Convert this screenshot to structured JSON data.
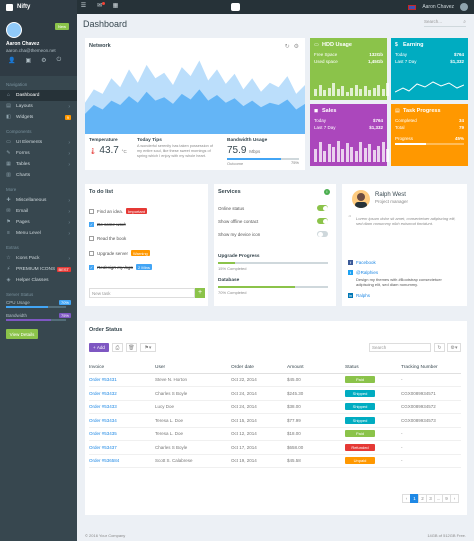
{
  "brand": {
    "name": "Nifty"
  },
  "topbar": {
    "user_name": "Aaron Chavez"
  },
  "sidebar": {
    "profile": {
      "name": "Aaron Chavez",
      "email": "aaron.cha@themeon.net",
      "badge": "New"
    },
    "sections": [
      {
        "title": "Navigation",
        "items": [
          {
            "label": "Dashboard",
            "icon": "home-icon",
            "active": true
          },
          {
            "label": "Layouts",
            "icon": "layout-icon",
            "arrow": true
          },
          {
            "label": "Widgets",
            "icon": "widget-icon",
            "badge": "9",
            "badge_color": "#ff9800"
          }
        ]
      },
      {
        "title": "Components",
        "items": [
          {
            "label": "UI Elements",
            "icon": "briefcase-icon",
            "arrow": true
          },
          {
            "label": "Forms",
            "icon": "edit-icon",
            "arrow": true
          },
          {
            "label": "Tables",
            "icon": "table-icon",
            "arrow": true
          },
          {
            "label": "Charts",
            "icon": "chart-icon"
          }
        ]
      },
      {
        "title": "More",
        "items": [
          {
            "label": "Miscellaneous",
            "icon": "plus-icon",
            "arrow": true
          },
          {
            "label": "Email",
            "icon": "envelope-icon",
            "arrow": true
          },
          {
            "label": "Pages",
            "icon": "flag-icon",
            "arrow": true
          },
          {
            "label": "Menu Level",
            "icon": "menu-icon",
            "arrow": true
          }
        ]
      },
      {
        "title": "Extras",
        "items": [
          {
            "label": "Icons Pack",
            "icon": "star-icon",
            "arrow": true
          },
          {
            "label": "PREMIUM ICONS",
            "icon": "lightning-icon",
            "badge": "BEST",
            "badge_color": "#e53935"
          },
          {
            "label": "Helper Classes",
            "icon": "helper-icon"
          }
        ]
      }
    ],
    "server_status": {
      "title": "Server Status",
      "cpu": {
        "label": "CPU Usage",
        "pct": "70%",
        "value": 70,
        "color": "#42a5f5"
      },
      "bandwidth": {
        "label": "Bandwidth",
        "pct": "75%",
        "value": 75,
        "color": "#7e57c2"
      },
      "button": "View Details"
    }
  },
  "page": {
    "title": "Dashboard",
    "search_placeholder": "Search..."
  },
  "network": {
    "title": "Network",
    "temperature": {
      "label": "Temperature",
      "value": "43.7",
      "unit": "°C"
    },
    "tips": {
      "label": "Today Tips",
      "text": "A wonderful serenity has taken possession of my entire soul, like these sweet mornings of spring which I enjoy with my whole heart."
    },
    "bandwidth": {
      "label": "Bandwidth Usage",
      "value": "75.9",
      "unit": "Mbps",
      "sub": "Outcome",
      "pct": "75%",
      "progress": 75
    },
    "chart_data": {
      "type": "area",
      "series": [
        {
          "values": [
            28,
            40,
            36,
            50,
            42,
            58,
            46,
            62,
            50,
            55,
            44,
            60,
            52,
            66,
            48,
            58,
            45,
            54,
            40,
            50,
            38,
            46,
            42,
            52,
            36,
            44
          ]
        },
        {
          "values": [
            18,
            26,
            22,
            30,
            26,
            34,
            28,
            38,
            30,
            33,
            27,
            36,
            31,
            40,
            30,
            35,
            28,
            32,
            25,
            30,
            24,
            28,
            26,
            31,
            22,
            27
          ]
        }
      ]
    }
  },
  "tiles": {
    "hdd": {
      "title": "HDD Usage",
      "icon": "hdd-icon",
      "color": "#8bc34a",
      "rows": [
        {
          "k": "Free Space",
          "v": "132Gb"
        },
        {
          "k": "Used space",
          "v": "1,45Gb"
        }
      ],
      "bars": [
        0.5,
        0.8,
        0.4,
        0.6,
        0.9,
        0.5,
        0.7,
        0.3,
        0.6,
        0.8,
        0.5,
        0.7,
        0.4,
        0.6,
        0.8,
        0.5,
        0.9,
        0.6,
        0.4,
        0.7
      ]
    },
    "earning": {
      "title": "Earning",
      "icon": "dollar-icon",
      "color": "#00acc1",
      "rows": [
        {
          "k": "Today",
          "v": "$764"
        },
        {
          "k": "Last 7 Day",
          "v": "$1,332"
        }
      ]
    },
    "sales": {
      "title": "Sales",
      "icon": "bag-icon",
      "color": "#ab47bc",
      "rows": [
        {
          "k": "Today",
          "v": "$764"
        },
        {
          "k": "Last 7 Day",
          "v": "$1,332"
        }
      ],
      "bars": [
        0.6,
        0.9,
        0.5,
        0.8,
        0.7,
        0.95,
        0.6,
        0.85,
        0.7,
        0.5,
        0.9,
        0.65,
        0.8,
        0.55,
        0.75,
        0.9,
        0.6,
        0.8,
        0.7,
        0.85
      ]
    },
    "task": {
      "title": "Task Progress",
      "icon": "doc-icon",
      "color": "#ff9800",
      "rows": [
        {
          "k": "Completed",
          "v": "34"
        },
        {
          "k": "Total",
          "v": "79"
        }
      ],
      "progress_label": "Progress",
      "progress_pct": "45%",
      "progress": 45
    }
  },
  "todo": {
    "title": "To do list",
    "items": [
      {
        "text": "Find an idea.",
        "checked": false,
        "badge": "Important",
        "badge_color": "#e53935"
      },
      {
        "text": "Do some work",
        "checked": true
      },
      {
        "text": "Read the book",
        "checked": false
      },
      {
        "text": "Upgrade server",
        "checked": false,
        "badge": "Warning",
        "badge_color": "#ff9800"
      },
      {
        "text": "Redesign my logo",
        "checked": true,
        "badge": "2 Mins",
        "badge_color": "#42a5f5"
      }
    ],
    "input_placeholder": "New task",
    "add_label": "+"
  },
  "services": {
    "title": "Services",
    "info": "i",
    "toggles": [
      {
        "label": "Online status",
        "on": true
      },
      {
        "label": "Show offline contact",
        "on": true
      },
      {
        "label": "Show my device icon",
        "on": false
      }
    ],
    "upgrade": {
      "label": "Upgrade Progress",
      "sub": "15% Completed",
      "value": 15,
      "color": "#8bc34a"
    },
    "database": {
      "label": "Database",
      "sub": "70% Completed",
      "value": 70,
      "color": "#8bc34a"
    }
  },
  "profile_card": {
    "name": "Ralph West",
    "role": "Project manager",
    "quote": "Lorem ipsum dolor sit amet, consectetuer adipiscing elit, sed diam nonummy nibh euismod tincidunt.",
    "facebook": "Facebook",
    "twitter": "@Ralphies",
    "twitter_text": "Design my themes with #Bootstrap consectetuer adipiscing elit, sed diam nonummy.",
    "twitter_count": "Ralphs"
  },
  "orders": {
    "title": "Order Status",
    "add_label": "Add",
    "search_placeholder": "Search",
    "columns": [
      "Invoice",
      "User",
      "Order date",
      "Amount",
      "Status",
      "Tracking Number"
    ],
    "rows": [
      {
        "invoice": "Order #53431",
        "user": "Steve N. Horton",
        "date": "Oct 22, 2014",
        "amount": "$45.00",
        "status": "Paid",
        "status_color": "#8bc34a",
        "tracking": "-"
      },
      {
        "invoice": "Order #53432",
        "user": "Charles S Boyle",
        "date": "Oct 24, 2014",
        "amount": "$245.30",
        "status": "Shipped",
        "status_color": "#00acc1",
        "tracking": "CGX0089934571"
      },
      {
        "invoice": "Order #53433",
        "user": "Lucy Doe",
        "date": "Oct 24, 2014",
        "amount": "$38.00",
        "status": "Shipped",
        "status_color": "#00acc1",
        "tracking": "CGX0089934572"
      },
      {
        "invoice": "Order #53434",
        "user": "Teresa L. Doe",
        "date": "Oct 15, 2014",
        "amount": "$77.99",
        "status": "Shipped",
        "status_color": "#00acc1",
        "tracking": "CGX0089934573"
      },
      {
        "invoice": "Order #53435",
        "user": "Teresa L. Doe",
        "date": "Oct 12, 2014",
        "amount": "$18.00",
        "status": "Paid",
        "status_color": "#8bc34a",
        "tracking": "-"
      },
      {
        "invoice": "Order #53437",
        "user": "Charles S Boyle",
        "date": "Oct 17, 2014",
        "amount": "$658.00",
        "status": "Refunded",
        "status_color": "#e53935",
        "tracking": "-"
      },
      {
        "invoice": "Order #536584",
        "user": "Scott S. Calabrese",
        "date": "Oct 19, 2014",
        "amount": "$45.58",
        "status": "Unpaid",
        "status_color": "#ff9800",
        "tracking": "-"
      }
    ],
    "pager": [
      "‹",
      "1",
      "2",
      "3",
      "...",
      "9",
      "›"
    ]
  },
  "footer": {
    "left": "© 2016 Your Company",
    "right": "14GB of 512GB Free."
  }
}
